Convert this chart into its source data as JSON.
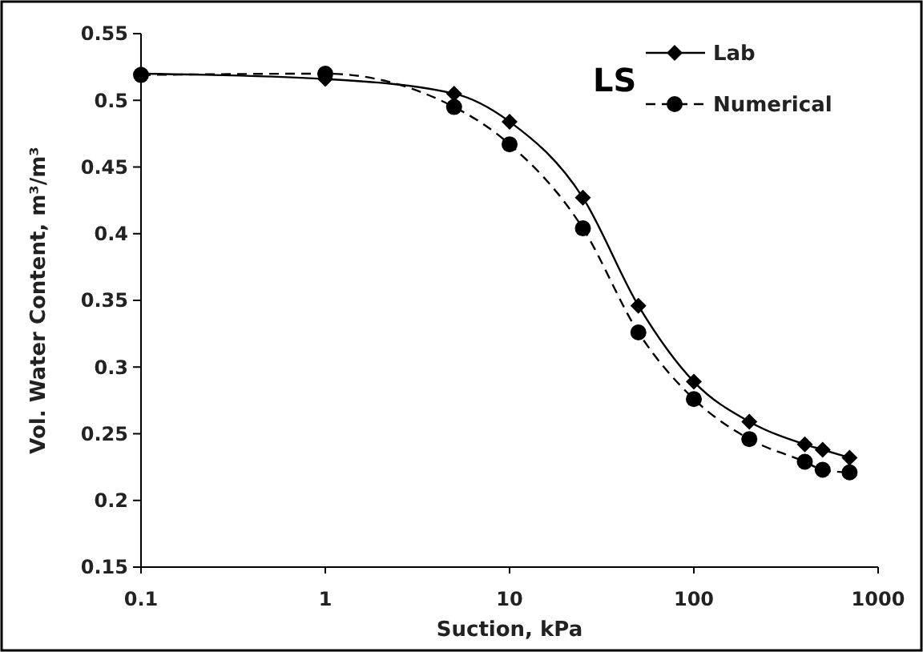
{
  "chart_data": {
    "type": "line",
    "xlabel": "Suction, kPa",
    "ylabel": "Vol. Water Content, m³/m³",
    "log": "x",
    "xlim": [
      0.1,
      1000
    ],
    "xticks": [
      0.1,
      1,
      10,
      100,
      1000
    ],
    "ylim": [
      0.15,
      0.55
    ],
    "yticks": [
      0.15,
      0.2,
      0.25,
      0.3,
      0.35,
      0.4,
      0.45,
      0.5,
      0.55
    ],
    "annotations": [
      "LS"
    ],
    "legend": "top right",
    "grid": false,
    "x": [
      0.1,
      1,
      5,
      10,
      25,
      50,
      100,
      200,
      400,
      500,
      700
    ],
    "series": [
      {
        "name": "Lab",
        "color": "#000000",
        "marker": "diamond",
        "line_style": "solid",
        "values": [
          0.52,
          0.516,
          0.505,
          0.484,
          0.427,
          0.346,
          0.289,
          0.259,
          0.242,
          0.238,
          0.232
        ]
      },
      {
        "name": "Numerical",
        "color": "#000000",
        "marker": "circle",
        "line_style": "dashed",
        "values": [
          0.519,
          0.52,
          0.495,
          0.467,
          0.404,
          0.326,
          0.276,
          0.246,
          0.229,
          0.223,
          0.221
        ]
      }
    ]
  }
}
